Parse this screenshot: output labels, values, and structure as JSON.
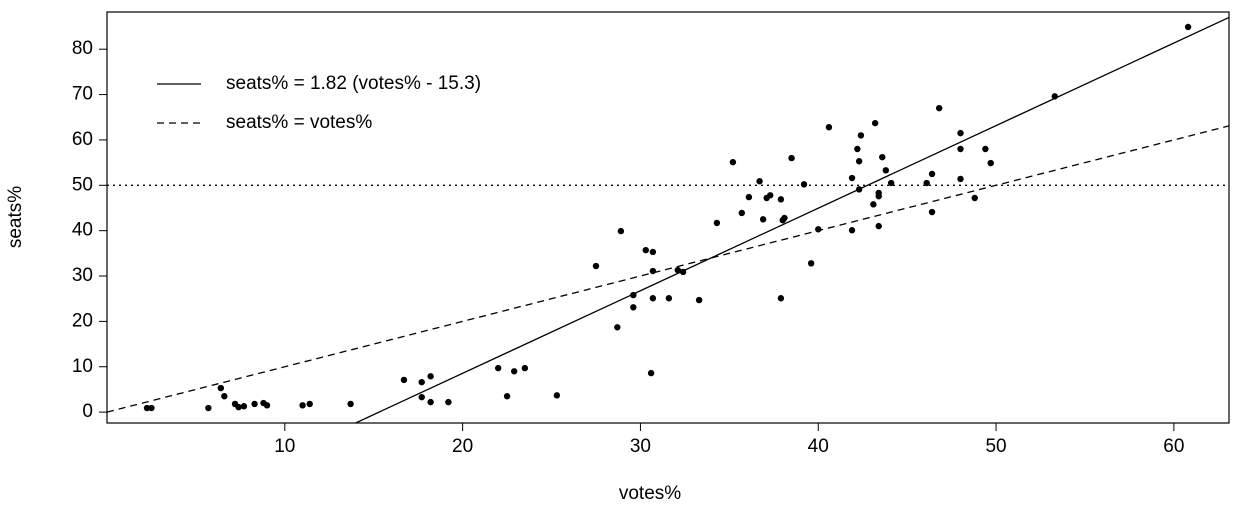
{
  "chart_data": {
    "type": "scatter",
    "x_label": "votes%",
    "y_label": "seats%",
    "x": [
      2.25,
      2.5,
      5.7,
      6.4,
      6.6,
      7.2,
      7.4,
      7.7,
      8.3,
      8.8,
      9.0,
      11.0,
      11.4,
      13.7,
      16.7,
      17.7,
      17.7,
      18.2,
      18.2,
      19.2,
      22.0,
      22.5,
      22.9,
      23.5,
      25.3,
      27.5,
      28.7,
      28.9,
      29.6,
      29.6,
      30.3,
      30.7,
      30.7,
      30.7,
      30.6,
      32.1,
      32.4,
      31.6,
      33.3,
      34.3,
      35.2,
      35.7,
      36.1,
      36.7,
      36.9,
      37.1,
      37.3,
      37.9,
      38.0,
      38.1,
      37.9,
      38.5,
      39.2,
      39.6,
      40.0,
      40.6,
      41.9,
      41.9,
      42.2,
      42.4,
      42.3,
      42.3,
      43.2,
      43.1,
      43.4,
      43.4,
      43.4,
      43.6,
      43.8,
      44.1,
      46.1,
      46.4,
      46.4,
      46.8,
      48.0,
      48.0,
      48.0,
      48.8,
      49.4,
      49.7,
      53.3,
      60.8
    ],
    "y": [
      0.9,
      0.9,
      0.9,
      5.3,
      3.5,
      1.8,
      1.1,
      1.3,
      1.8,
      2.0,
      1.5,
      1.5,
      1.8,
      1.8,
      7.1,
      6.6,
      3.3,
      7.9,
      2.2,
      2.2,
      9.7,
      3.5,
      9.0,
      9.7,
      3.7,
      32.2,
      18.7,
      39.9,
      25.8,
      23.1,
      35.7,
      35.3,
      31.1,
      25.1,
      8.6,
      31.3,
      30.9,
      25.1,
      24.7,
      41.7,
      55.1,
      43.9,
      47.4,
      50.9,
      42.5,
      47.2,
      47.8,
      46.9,
      42.3,
      42.8,
      25.1,
      56.0,
      50.2,
      32.8,
      40.3,
      62.8,
      40.1,
      51.6,
      58.0,
      61.0,
      55.3,
      49.1,
      63.7,
      45.8,
      48.3,
      47.6,
      41.0,
      56.2,
      53.3,
      50.5,
      50.5,
      52.5,
      44.1,
      67.0,
      61.5,
      58.0,
      51.4,
      47.2,
      58.0,
      54.9,
      69.6,
      84.9
    ],
    "color": "#000000",
    "reference_lines": [
      {
        "label": "seats% = 1.82 (votes% - 15.3)",
        "slope": 1.82,
        "x0": 15.3,
        "style": "solid"
      },
      {
        "label": "seats% = votes%",
        "slope": 1,
        "x0": 0,
        "style": "dashed"
      }
    ],
    "hline": {
      "value": 50,
      "style": "dotted"
    },
    "xlim": [
      0,
      63.1
    ],
    "ylim": [
      -2.4,
      88.2
    ],
    "xticks": [
      10,
      20,
      30,
      40,
      50,
      60
    ],
    "yticks": [
      0,
      10,
      20,
      30,
      40,
      50,
      60,
      70,
      80
    ],
    "legend": "top-left"
  }
}
